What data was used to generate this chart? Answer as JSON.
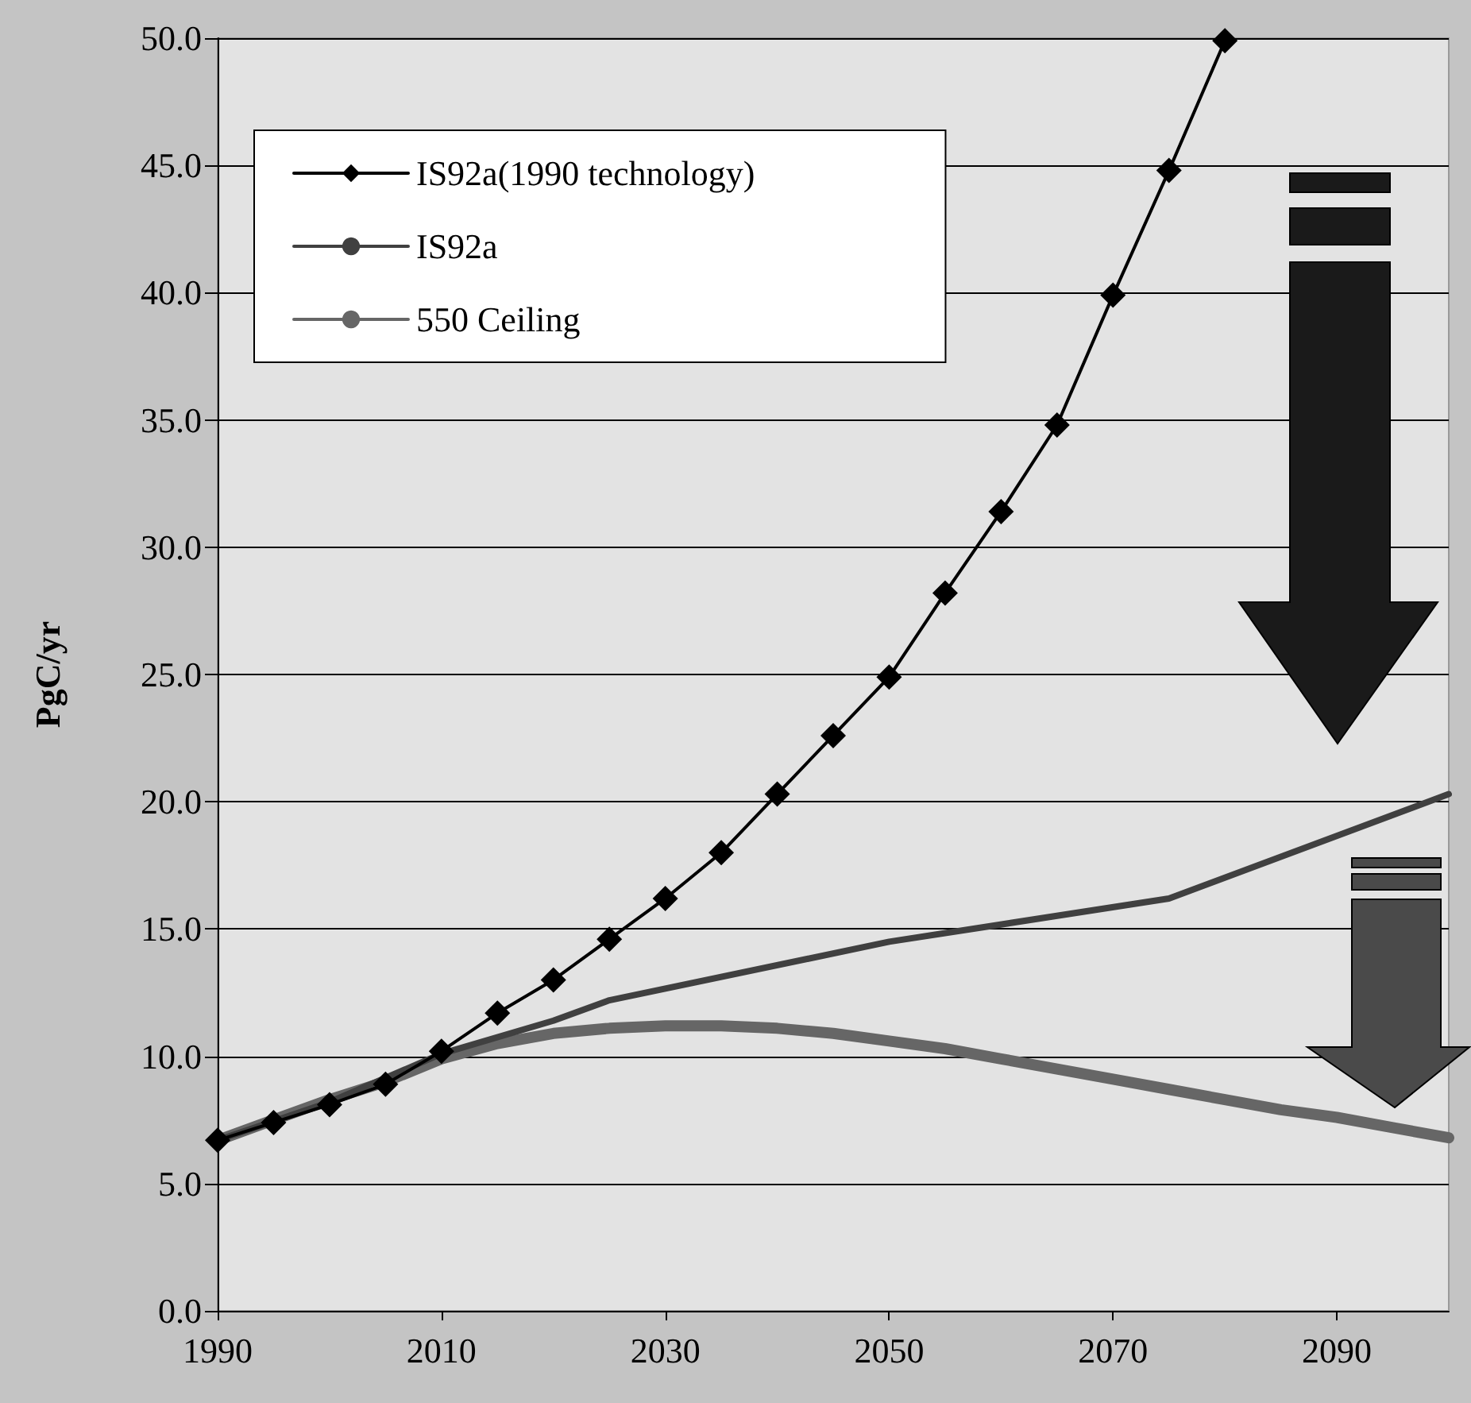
{
  "chart_data": {
    "type": "line",
    "ylabel": "PgC/yr",
    "xlim": [
      1990,
      2100
    ],
    "xticks": [
      1990,
      2010,
      2030,
      2050,
      2070,
      2090
    ],
    "ylim": [
      0,
      50
    ],
    "yticks": [
      {
        "value": 0,
        "label": "0.0"
      },
      {
        "value": 5,
        "label": "5.0"
      },
      {
        "value": 10,
        "label": "10.0"
      },
      {
        "value": 15,
        "label": "15.0"
      },
      {
        "value": 20,
        "label": "20.0"
      },
      {
        "value": 25,
        "label": "25.0"
      },
      {
        "value": 30,
        "label": "30.0"
      },
      {
        "value": 35,
        "label": "35.0"
      },
      {
        "value": 40,
        "label": "40.0"
      },
      {
        "value": 45,
        "label": "45.0"
      },
      {
        "value": 50,
        "label": "50.0"
      }
    ],
    "grid": "y",
    "legend": "top left",
    "series": [
      {
        "name": "IS92a(1990 technology)",
        "color": "#000000",
        "marker": "diamond",
        "x": [
          1990,
          1995,
          2000,
          2005,
          2010,
          2015,
          2020,
          2025,
          2030,
          2035,
          2040,
          2045,
          2050,
          2055,
          2060,
          2065,
          2070,
          2075,
          2080
        ],
        "values": [
          6.7,
          7.4,
          8.1,
          8.9,
          10.2,
          11.7,
          13.0,
          14.6,
          16.2,
          18.0,
          20.3,
          22.6,
          24.9,
          28.2,
          31.4,
          34.8,
          39.9,
          44.8,
          49.9
        ]
      },
      {
        "name": "IS92a",
        "color": "#404040",
        "marker": "none",
        "x": [
          1990,
          2000,
          2010,
          2020,
          2025,
          2050,
          2075,
          2100
        ],
        "values": [
          6.7,
          8.2,
          10.1,
          11.4,
          12.2,
          14.5,
          16.2,
          20.3
        ]
      },
      {
        "name": "550 Ceiling",
        "color": "#666666",
        "marker": "none",
        "x": [
          1990,
          1995,
          2000,
          2005,
          2010,
          2015,
          2020,
          2025,
          2030,
          2035,
          2040,
          2045,
          2050,
          2055,
          2060,
          2065,
          2070,
          2075,
          2080,
          2085,
          2090,
          2095,
          2100
        ],
        "values": [
          6.7,
          7.5,
          8.3,
          9.0,
          9.9,
          10.5,
          10.9,
          11.1,
          11.2,
          11.2,
          11.1,
          10.9,
          10.6,
          10.3,
          9.9,
          9.5,
          9.1,
          8.7,
          8.3,
          7.9,
          7.6,
          7.2,
          6.8
        ]
      }
    ]
  }
}
